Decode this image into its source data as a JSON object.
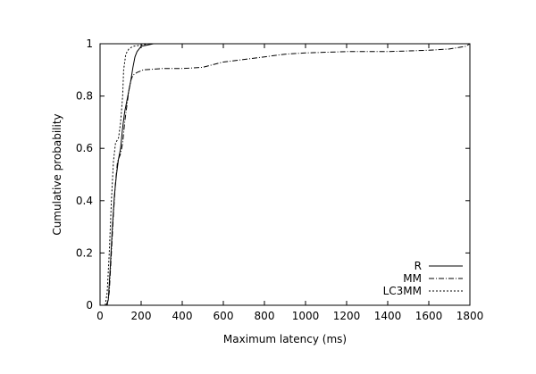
{
  "chart_data": {
    "type": "line",
    "title": "",
    "xlabel": "Maximum latency (ms)",
    "ylabel": "Cumulative probability",
    "xlim": [
      0,
      1800
    ],
    "ylim": [
      0,
      1
    ],
    "x_ticks": [
      0,
      200,
      400,
      600,
      800,
      1000,
      1200,
      1400,
      1600,
      1800
    ],
    "y_ticks": [
      0,
      0.2,
      0.4,
      0.6,
      0.8,
      1
    ],
    "grid": false,
    "legend_position": "bottom-right",
    "series": [
      {
        "name": "R",
        "style": "solid",
        "points": [
          [
            30,
            0
          ],
          [
            40,
            0.02
          ],
          [
            50,
            0.15
          ],
          [
            60,
            0.3
          ],
          [
            70,
            0.42
          ],
          [
            80,
            0.5
          ],
          [
            90,
            0.56
          ],
          [
            100,
            0.6
          ],
          [
            110,
            0.68
          ],
          [
            120,
            0.74
          ],
          [
            130,
            0.78
          ],
          [
            140,
            0.82
          ],
          [
            150,
            0.86
          ],
          [
            160,
            0.91
          ],
          [
            170,
            0.95
          ],
          [
            180,
            0.97
          ],
          [
            200,
            0.99
          ],
          [
            230,
            0.995
          ],
          [
            260,
            1.0
          ],
          [
            1800,
            1.0
          ]
        ]
      },
      {
        "name": "MM",
        "style": "dash-dot",
        "points": [
          [
            35,
            0
          ],
          [
            45,
            0.05
          ],
          [
            55,
            0.2
          ],
          [
            65,
            0.35
          ],
          [
            75,
            0.47
          ],
          [
            85,
            0.55
          ],
          [
            100,
            0.58
          ],
          [
            110,
            0.62
          ],
          [
            120,
            0.7
          ],
          [
            130,
            0.76
          ],
          [
            140,
            0.82
          ],
          [
            150,
            0.86
          ],
          [
            160,
            0.88
          ],
          [
            180,
            0.89
          ],
          [
            210,
            0.9
          ],
          [
            300,
            0.905
          ],
          [
            400,
            0.905
          ],
          [
            500,
            0.91
          ],
          [
            550,
            0.92
          ],
          [
            600,
            0.93
          ],
          [
            700,
            0.94
          ],
          [
            800,
            0.95
          ],
          [
            900,
            0.96
          ],
          [
            1000,
            0.965
          ],
          [
            1200,
            0.97
          ],
          [
            1400,
            0.97
          ],
          [
            1600,
            0.975
          ],
          [
            1700,
            0.98
          ],
          [
            1780,
            0.99
          ],
          [
            1800,
            1.0
          ]
        ]
      },
      {
        "name": "LC3MM",
        "style": "dotted",
        "points": [
          [
            25,
            0
          ],
          [
            35,
            0.05
          ],
          [
            45,
            0.2
          ],
          [
            55,
            0.4
          ],
          [
            65,
            0.55
          ],
          [
            75,
            0.62
          ],
          [
            90,
            0.64
          ],
          [
            100,
            0.7
          ],
          [
            110,
            0.8
          ],
          [
            115,
            0.9
          ],
          [
            125,
            0.96
          ],
          [
            140,
            0.98
          ],
          [
            160,
            0.99
          ],
          [
            200,
            0.995
          ],
          [
            240,
            1.0
          ],
          [
            1800,
            1.0
          ]
        ]
      }
    ]
  }
}
